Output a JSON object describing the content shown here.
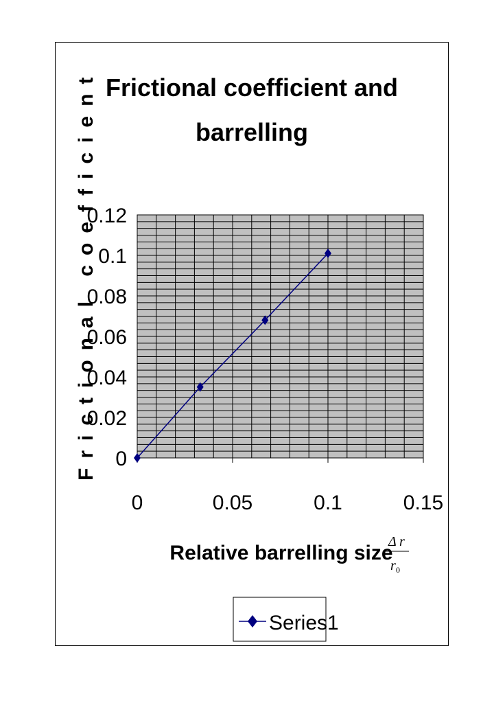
{
  "chart_data": {
    "type": "line",
    "title_line1": "Frictional coefficient and",
    "title_line2": "barrelling",
    "xlabel": "Relative barrelling size",
    "ylabel": "Frictional coefficient",
    "x_ticks": [
      "0",
      "0.05",
      "0.1",
      "0.15"
    ],
    "y_ticks": [
      "0",
      "0.02",
      "0.04",
      "0.06",
      "0.08",
      "0.1",
      "0.12"
    ],
    "xlim": [
      0,
      0.15
    ],
    "ylim": [
      0,
      0.12
    ],
    "grid": true,
    "plot_background": "#c0c0c0",
    "legend_position": "bottom",
    "series": [
      {
        "name": "Series1",
        "color": "#000080",
        "marker": "diamond",
        "x": [
          0,
          0.033,
          0.067,
          0.1
        ],
        "y": [
          0,
          0.035,
          0.068,
          0.101
        ]
      }
    ],
    "annotation_formula": {
      "numerator_symbol": "Δ",
      "numerator_var": "r",
      "denominator_var": "r",
      "denominator_sub": "0"
    }
  }
}
